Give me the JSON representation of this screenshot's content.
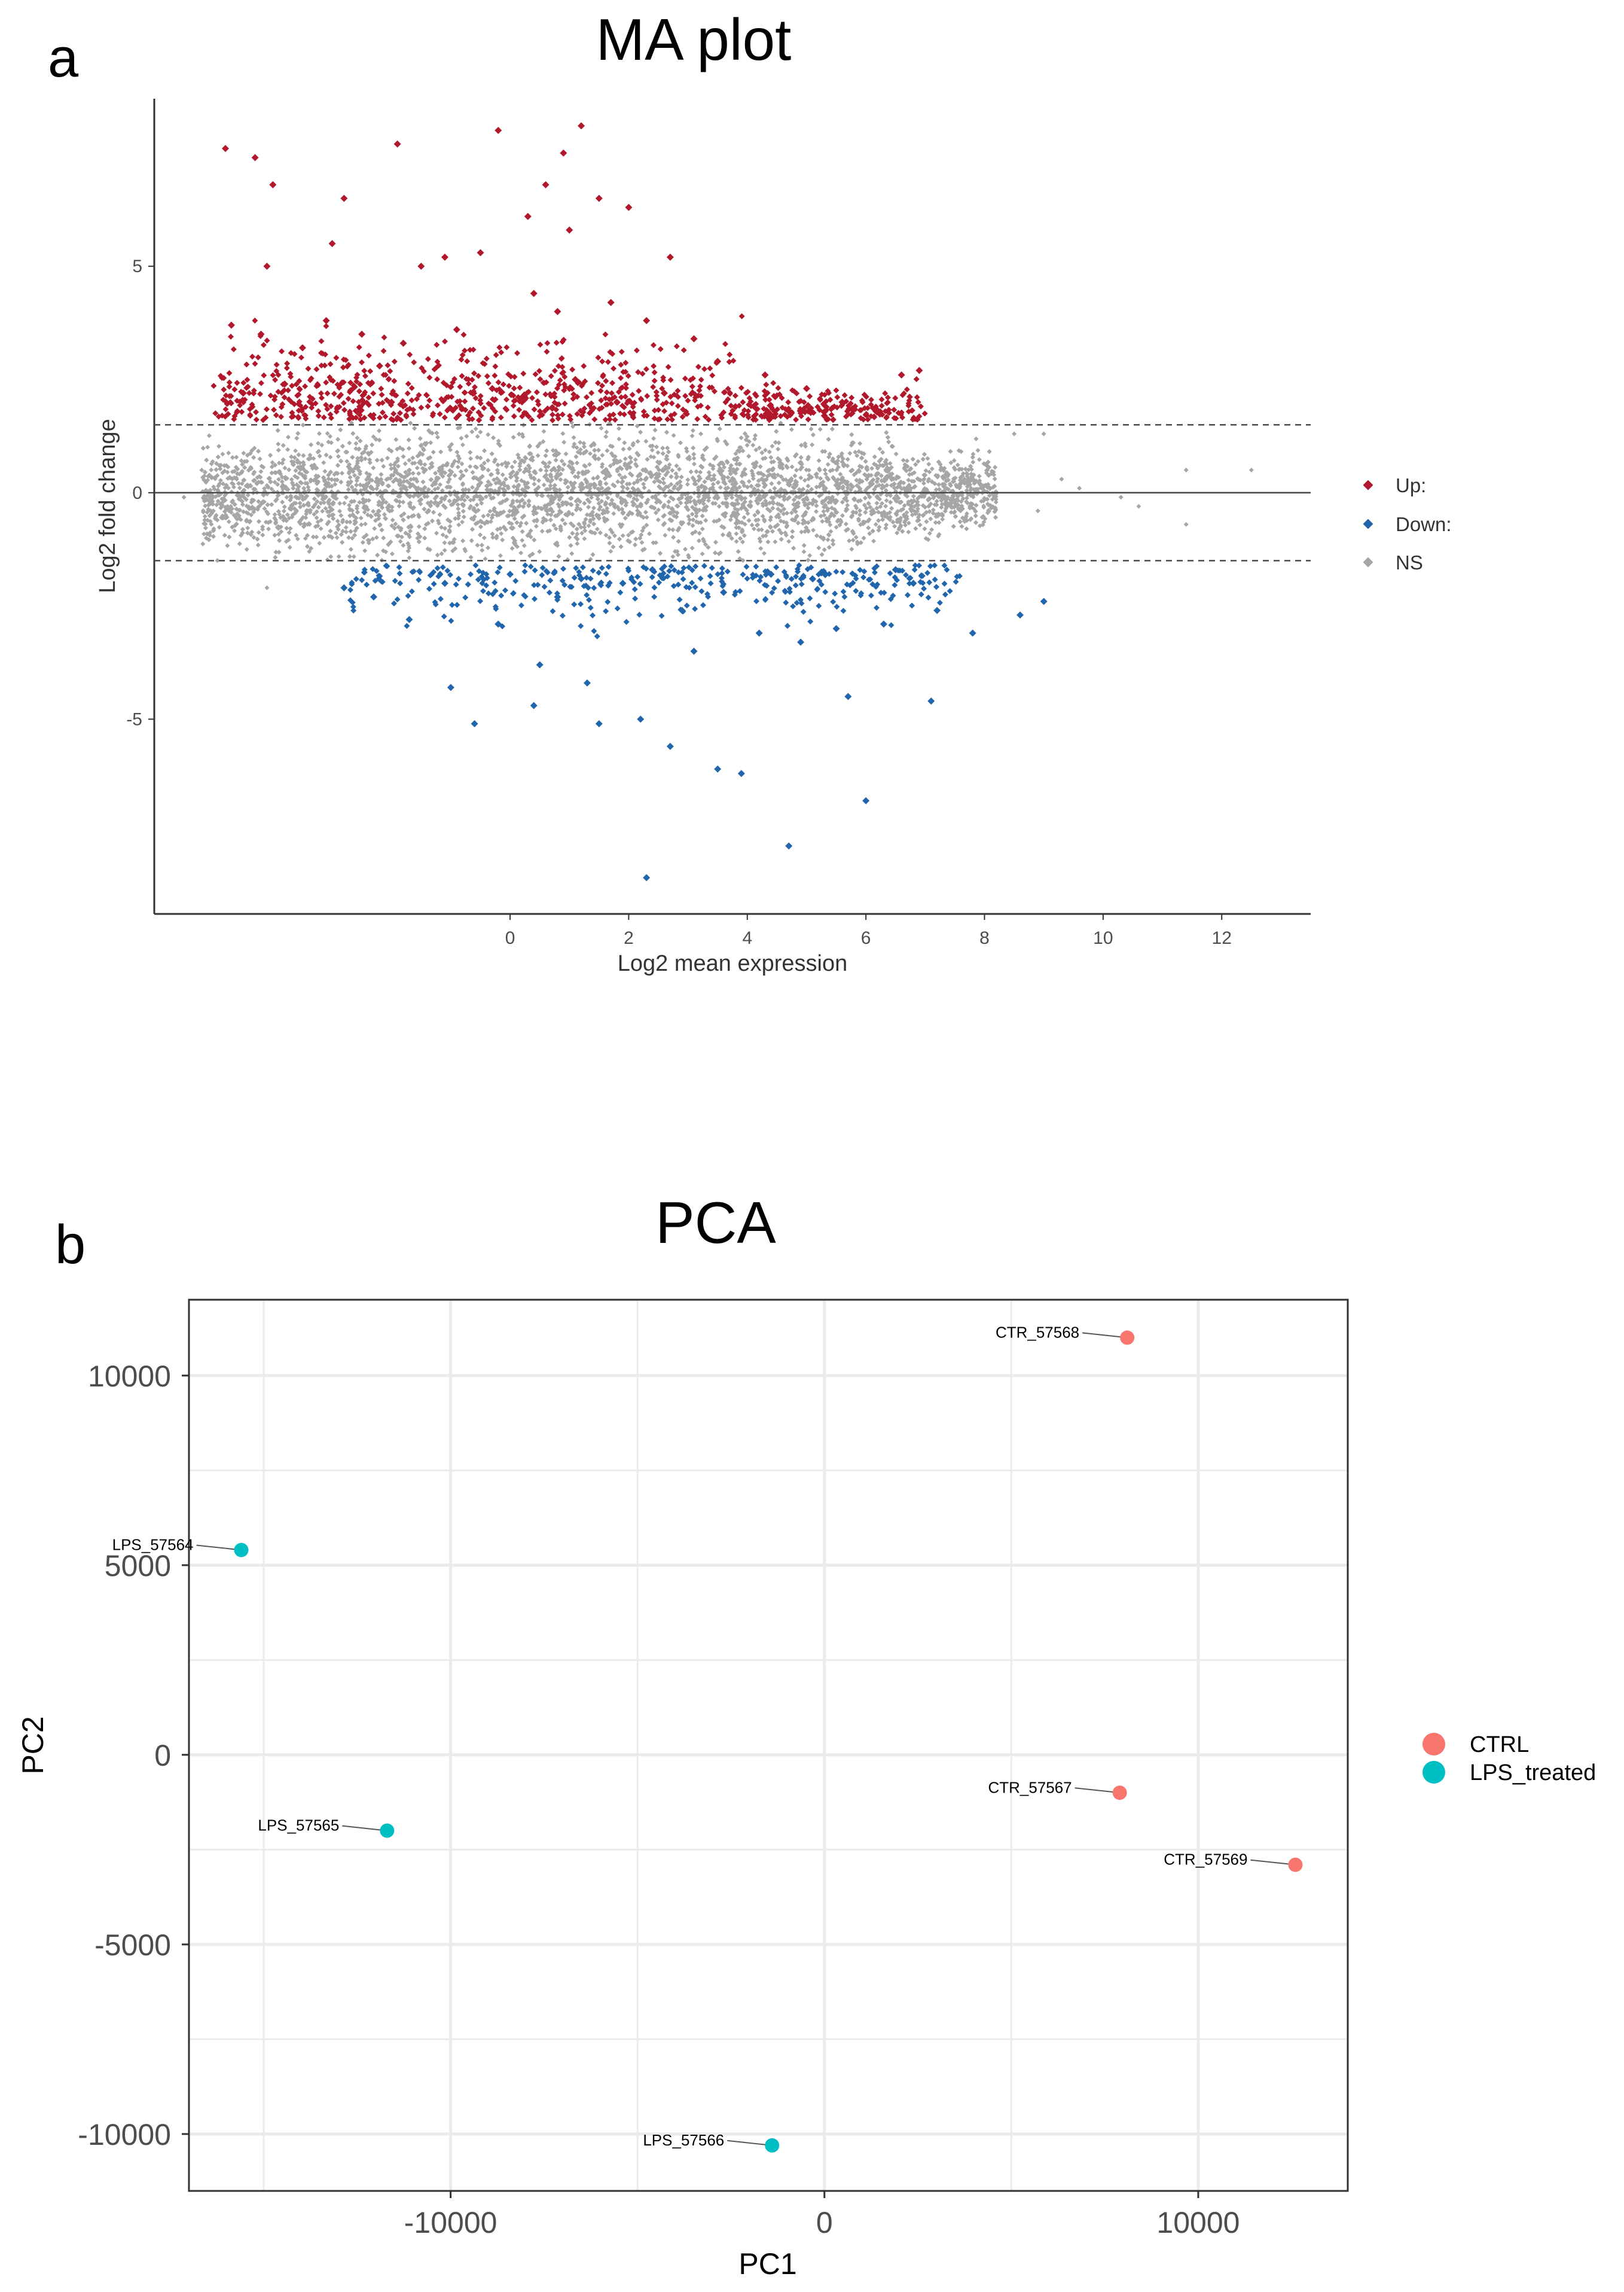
{
  "panels": {
    "a": {
      "letter": "a",
      "chart_data": {
        "type": "scatter",
        "title": "MA plot",
        "xlabel": "Log2 mean expression",
        "ylabel": "Log2 fold change",
        "xlim": [
          -6,
          13.5
        ],
        "ylim": [
          -9.3,
          8.7
        ],
        "x_ticks": [
          0,
          2,
          4,
          6,
          8,
          10,
          12
        ],
        "x_tick_labels": [
          "0",
          "2",
          "4",
          "6",
          "8",
          "10",
          "12"
        ],
        "y_ticks": [
          5,
          0,
          -5
        ],
        "y_tick_labels": [
          "5",
          "0",
          "-5"
        ],
        "hlines": [
          {
            "y": 0,
            "style": "solid"
          },
          {
            "y": 1.5,
            "style": "dashed"
          },
          {
            "y": -1.5,
            "style": "dashed"
          }
        ],
        "legend": {
          "position": "right",
          "entries": [
            "Up:",
            "Down:",
            "NS"
          ]
        },
        "series": [
          {
            "name": "Up:",
            "color": "#b2182b",
            "points": [
              [
                -4.8,
                7.6
              ],
              [
                -4.3,
                7.4
              ],
              [
                -4.0,
                6.8
              ],
              [
                -1.9,
                7.7
              ],
              [
                -0.2,
                8.0
              ],
              [
                1.2,
                8.1
              ],
              [
                0.9,
                7.5
              ],
              [
                0.6,
                6.8
              ],
              [
                2.0,
                6.3
              ],
              [
                -2.8,
                6.5
              ],
              [
                -3.0,
                5.5
              ],
              [
                -4.1,
                5.0
              ],
              [
                -1.5,
                5.0
              ],
              [
                -1.1,
                5.2
              ],
              [
                -0.5,
                5.3
              ],
              [
                0.3,
                6.1
              ],
              [
                1.5,
                6.5
              ],
              [
                2.7,
                5.2
              ],
              [
                1.0,
                5.8
              ],
              [
                -4.7,
                3.7
              ],
              [
                -4.2,
                3.5
              ],
              [
                -3.5,
                3.2
              ],
              [
                -3.1,
                3.8
              ],
              [
                -2.5,
                3.5
              ],
              [
                -2.2,
                2.8
              ],
              [
                -1.8,
                3.3
              ],
              [
                -0.9,
                3.6
              ],
              [
                0.4,
                4.4
              ],
              [
                0.8,
                4.0
              ],
              [
                1.7,
                4.2
              ],
              [
                2.3,
                3.8
              ],
              [
                3.1,
                3.4
              ],
              [
                3.5,
                2.9
              ],
              [
                4.3,
                2.6
              ],
              [
                5.0,
                2.3
              ],
              [
                5.6,
                2.0
              ],
              [
                6.6,
                2.6
              ],
              [
                6.9,
                2.7
              ],
              [
                6.2,
                1.8
              ],
              [
                -0.3,
                2.3
              ],
              [
                0.2,
                2.1
              ],
              [
                1.1,
                2.5
              ],
              [
                1.8,
                2.0
              ],
              [
                2.6,
                2.2
              ],
              [
                3.8,
                1.9
              ],
              [
                4.7,
                1.8
              ],
              [
                5.3,
                1.7
              ],
              [
                -2.0,
                2.0
              ],
              [
                -3.8,
                2.4
              ],
              [
                -4.5,
                2.2
              ]
            ]
          },
          {
            "name": "Down:",
            "color": "#2166ac",
            "points": [
              [
                2.3,
                -8.5
              ],
              [
                4.7,
                -7.8
              ],
              [
                6.0,
                -6.8
              ],
              [
                3.5,
                -6.1
              ],
              [
                3.9,
                -6.2
              ],
              [
                2.7,
                -5.6
              ],
              [
                1.5,
                -5.1
              ],
              [
                -0.6,
                -5.1
              ],
              [
                0.4,
                -4.7
              ],
              [
                2.2,
                -5.0
              ],
              [
                -1.0,
                -4.3
              ],
              [
                0.5,
                -3.8
              ],
              [
                1.3,
                -4.2
              ],
              [
                3.1,
                -3.5
              ],
              [
                4.2,
                -3.1
              ],
              [
                4.9,
                -3.3
              ],
              [
                5.5,
                -3.0
              ],
              [
                6.3,
                -2.9
              ],
              [
                7.2,
                -2.6
              ],
              [
                7.8,
                -3.1
              ],
              [
                8.6,
                -2.7
              ],
              [
                9.0,
                -2.4
              ],
              [
                5.7,
                -4.5
              ],
              [
                7.1,
                -4.6
              ],
              [
                -2.3,
                -2.3
              ],
              [
                -1.7,
                -2.8
              ],
              [
                -0.2,
                -2.9
              ],
              [
                0.8,
                -2.3
              ],
              [
                1.9,
                -2.0
              ],
              [
                2.9,
                -2.6
              ],
              [
                3.6,
                -2.2
              ],
              [
                6.8,
                -2.0
              ],
              [
                -2.8,
                -2.1
              ],
              [
                -1.1,
                -2.0
              ],
              [
                0.0,
                -1.8
              ],
              [
                1.2,
                -1.9
              ],
              [
                2.4,
                -1.7
              ],
              [
                4.4,
                -1.8
              ],
              [
                5.1,
                -1.9
              ],
              [
                6.5,
                -1.7
              ]
            ]
          },
          {
            "name": "NS",
            "color": "#a6a6a6",
            "density": "dense band about 0 within ±1.6; outliers to x=12.5",
            "points": [
              [
                9.3,
                0.3
              ],
              [
                9.6,
                0.1
              ],
              [
                10.3,
                -0.1
              ],
              [
                10.6,
                -0.3
              ],
              [
                11.4,
                0.5
              ],
              [
                11.4,
                -0.7
              ],
              [
                12.5,
                0.5
              ],
              [
                -5.2,
                0.5
              ],
              [
                -5.5,
                -0.1
              ],
              [
                -4.1,
                -2.1
              ],
              [
                8.5,
                1.3
              ],
              [
                9.0,
                1.3
              ],
              [
                8.9,
                -0.4
              ]
            ]
          }
        ]
      }
    },
    "b": {
      "letter": "b",
      "chart_data": {
        "type": "scatter",
        "title": "PCA",
        "xlabel": "PC1",
        "ylabel": "PC2",
        "xlim": [
          -17000,
          14000
        ],
        "ylim": [
          -11500,
          12000
        ],
        "x_ticks": [
          -10000,
          0,
          10000
        ],
        "x_tick_labels": [
          "-10000",
          "0",
          "10000"
        ],
        "y_ticks": [
          10000,
          5000,
          0,
          -5000,
          -10000
        ],
        "y_tick_labels": [
          "10000",
          "5000",
          "0",
          "-5000",
          "-10000"
        ],
        "grid": true,
        "legend": {
          "position": "right",
          "entries": [
            "CTRL",
            "LPS_treated"
          ]
        },
        "series": [
          {
            "name": "CTRL",
            "color": "#f8766d",
            "points": [
              {
                "label": "CTR_57568",
                "x": 8100,
                "y": 11000
              },
              {
                "label": "CTR_57567",
                "x": 7900,
                "y": -1000
              },
              {
                "label": "CTR_57569",
                "x": 12600,
                "y": -2900
              }
            ]
          },
          {
            "name": "LPS_treated",
            "color": "#00bfc4",
            "points": [
              {
                "label": "LPS_57564",
                "x": -15600,
                "y": 5400
              },
              {
                "label": "LPS_57565",
                "x": -11700,
                "y": -2000
              },
              {
                "label": "LPS_57566",
                "x": -1400,
                "y": -10300
              }
            ]
          }
        ]
      }
    }
  }
}
